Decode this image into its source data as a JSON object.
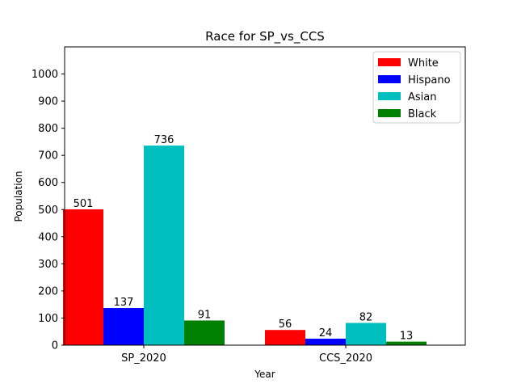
{
  "chart_data": {
    "type": "bar",
    "title": "Race for SP_vs_CCS",
    "xlabel": "Year",
    "ylabel": "Population",
    "categories": [
      "SP_2020",
      "CCS_2020"
    ],
    "series": [
      {
        "name": "White",
        "color": "#ff0000",
        "values": [
          501,
          56
        ]
      },
      {
        "name": "Hispano",
        "color": "#0000ff",
        "values": [
          137,
          24
        ]
      },
      {
        "name": "Asian",
        "color": "#00bfbf",
        "values": [
          736,
          82
        ]
      },
      {
        "name": "Black",
        "color": "#008000",
        "values": [
          91,
          13
        ]
      }
    ],
    "ylim": [
      0,
      1100
    ],
    "yticks": [
      0,
      100,
      200,
      300,
      400,
      500,
      600,
      700,
      800,
      900,
      1000
    ],
    "grid": false,
    "legend_position": "top-right"
  }
}
